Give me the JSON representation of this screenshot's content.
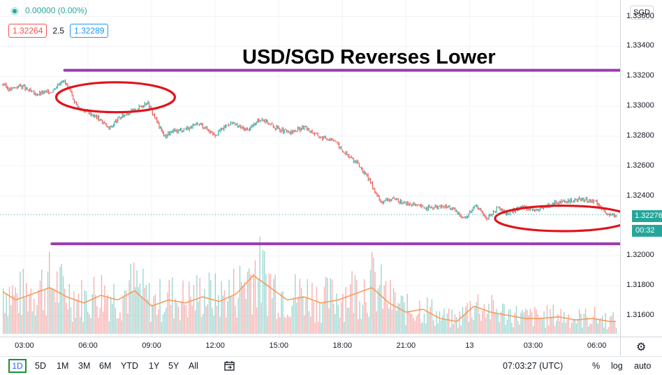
{
  "legend": {
    "change": "0.00000 (0.00%)"
  },
  "quote": {
    "bid": "1.32264",
    "spread": "2.5",
    "ask": "1.32289"
  },
  "headline": "USD/SGD Reverses Lower",
  "price_axis": {
    "currency": "SGD",
    "last_price": "1.32276",
    "countdown": "00:32",
    "last_value": 1.32276
  },
  "colors": {
    "up": "#26a69a",
    "down": "#ef5350",
    "annotation_line": "#9c3ab0",
    "annotation_circle": "#e0141c"
  },
  "chart_data": {
    "type": "line",
    "title": "USD/SGD Reverses Lower",
    "ylim": [
      1.3146,
      1.3371
    ],
    "y_ticks": [
      "1.33600",
      "1.33400",
      "1.33200",
      "1.33000",
      "1.32800",
      "1.32600",
      "1.32400",
      "1.32000",
      "1.31800",
      "1.31600"
    ],
    "y_tick_values": [
      1.336,
      1.334,
      1.332,
      1.33,
      1.328,
      1.326,
      1.324,
      1.32,
      1.318,
      1.316
    ],
    "x_ticks": [
      "03:00",
      "06:00",
      "09:00",
      "12:00",
      "15:00",
      "18:00",
      "21:00",
      "13",
      "03:00",
      "06:00"
    ],
    "x_tick_hours": [
      3,
      6,
      9,
      12,
      15,
      18,
      21,
      24,
      27,
      30
    ],
    "x_range_hours": [
      1.85,
      31.1
    ],
    "series": [
      {
        "x": [
          1.9,
          2.3,
          2.8,
          3.5,
          4.3,
          4.8,
          5.0,
          5.3,
          5.6,
          6.0,
          6.5,
          7.0,
          7.4,
          7.8,
          8.3,
          8.8,
          9.1,
          9.6,
          10.0,
          10.6,
          11.3,
          12.0,
          12.7,
          13.5,
          14.2,
          14.8,
          15.5,
          16.2,
          17.0,
          17.6,
          18.0,
          18.7,
          19.3,
          19.8,
          20.3,
          21.0,
          22.0,
          23.0,
          23.8,
          24.3,
          24.8,
          25.3,
          25.8,
          26.5,
          27.2,
          27.9,
          28.6,
          29.3,
          30.0,
          30.5,
          31.0
        ],
        "values": [
          1.3316,
          1.3311,
          1.3314,
          1.3308,
          1.331,
          1.3318,
          1.3314,
          1.3305,
          1.3298,
          1.3296,
          1.3292,
          1.3285,
          1.3291,
          1.3295,
          1.3298,
          1.3303,
          1.3294,
          1.328,
          1.3283,
          1.3285,
          1.3288,
          1.3281,
          1.3289,
          1.3284,
          1.3292,
          1.3286,
          1.3282,
          1.3286,
          1.3279,
          1.3278,
          1.327,
          1.3262,
          1.325,
          1.3236,
          1.3238,
          1.3235,
          1.3232,
          1.3233,
          1.3225,
          1.3235,
          1.3224,
          1.3232,
          1.3228,
          1.3233,
          1.323,
          1.3235,
          1.3236,
          1.3238,
          1.3236,
          1.3227,
          1.32276
        ]
      }
    ],
    "volume": {
      "x": [
        1.9,
        2.6,
        3.4,
        4.2,
        5.0,
        5.8,
        6.6,
        7.4,
        8.2,
        9.0,
        9.8,
        10.6,
        11.4,
        12.2,
        13.0,
        13.8,
        14.6,
        15.4,
        16.2,
        17.0,
        17.8,
        18.6,
        19.4,
        20.2,
        21.0,
        21.8,
        22.6,
        23.4,
        24.2,
        25.0,
        25.8,
        26.6,
        27.4,
        28.2,
        29.0,
        29.8,
        30.6
      ],
      "values": [
        28,
        22,
        26,
        30,
        24,
        20,
        25,
        22,
        28,
        18,
        22,
        20,
        24,
        21,
        26,
        38,
        30,
        22,
        24,
        20,
        22,
        26,
        30,
        20,
        14,
        16,
        10,
        8,
        18,
        14,
        12,
        10,
        10,
        11,
        9,
        10,
        8
      ]
    }
  },
  "annotations": {
    "lines": [
      {
        "x": [
          4.9,
          31.1
        ],
        "y": [
          1.3324,
          1.3324
        ]
      },
      {
        "x": [
          4.3,
          31.1
        ],
        "y": [
          1.3208,
          1.3208
        ]
      }
    ],
    "ellipses": [
      {
        "cx": 7.3,
        "cy": 1.3306,
        "rx_hours": 2.8,
        "ry_price": 0.001
      },
      {
        "cx": 28.4,
        "cy": 1.3225,
        "rx_hours": 3.2,
        "ry_price": 0.00085
      }
    ]
  },
  "bottom_bar": {
    "ranges": [
      "1D",
      "5D",
      "1M",
      "3M",
      "6M",
      "YTD",
      "1Y",
      "5Y",
      "All"
    ],
    "time": "07:03:27 (UTC)",
    "options": [
      "%",
      "log",
      "auto"
    ]
  }
}
